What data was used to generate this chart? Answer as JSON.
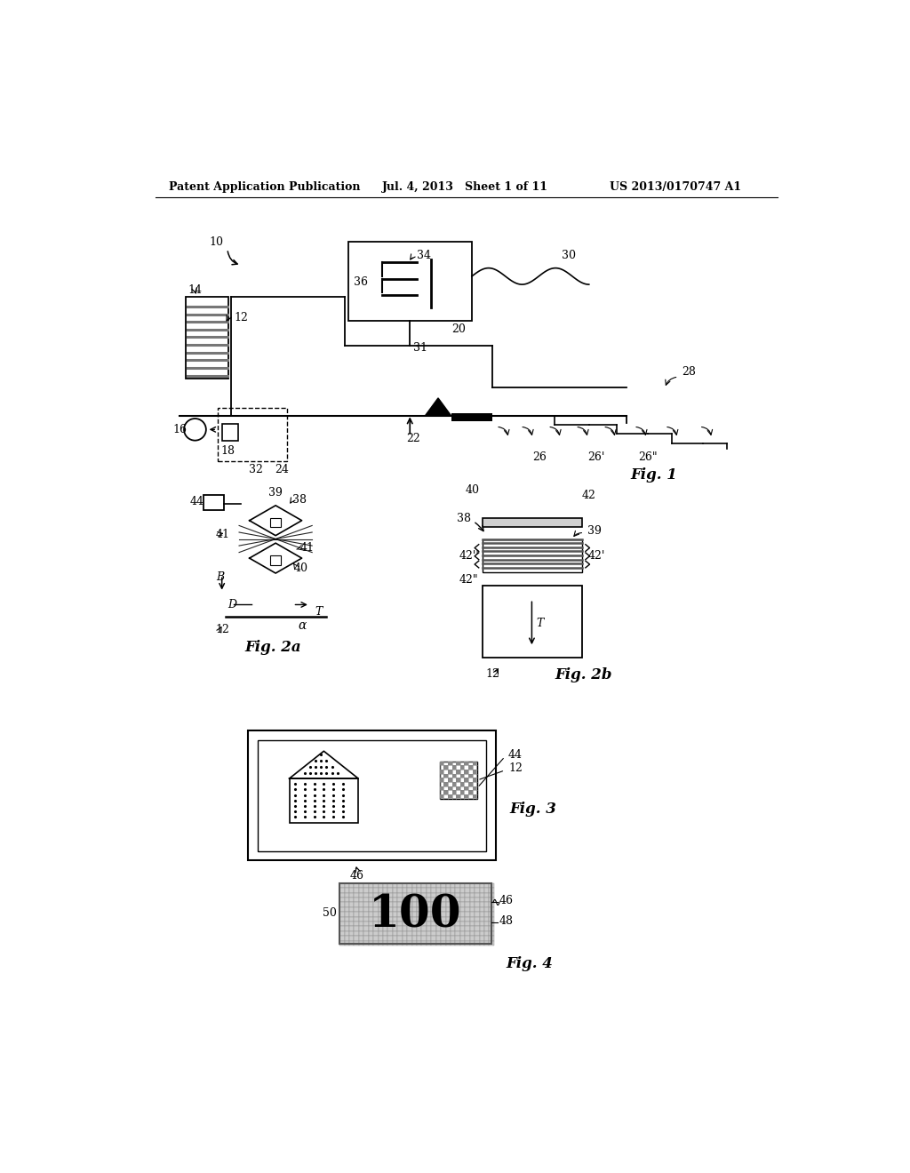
{
  "bg_color": "#ffffff",
  "header_left": "Patent Application Publication",
  "header_mid": "Jul. 4, 2013   Sheet 1 of 11",
  "header_right": "US 2013/0170747 A1"
}
